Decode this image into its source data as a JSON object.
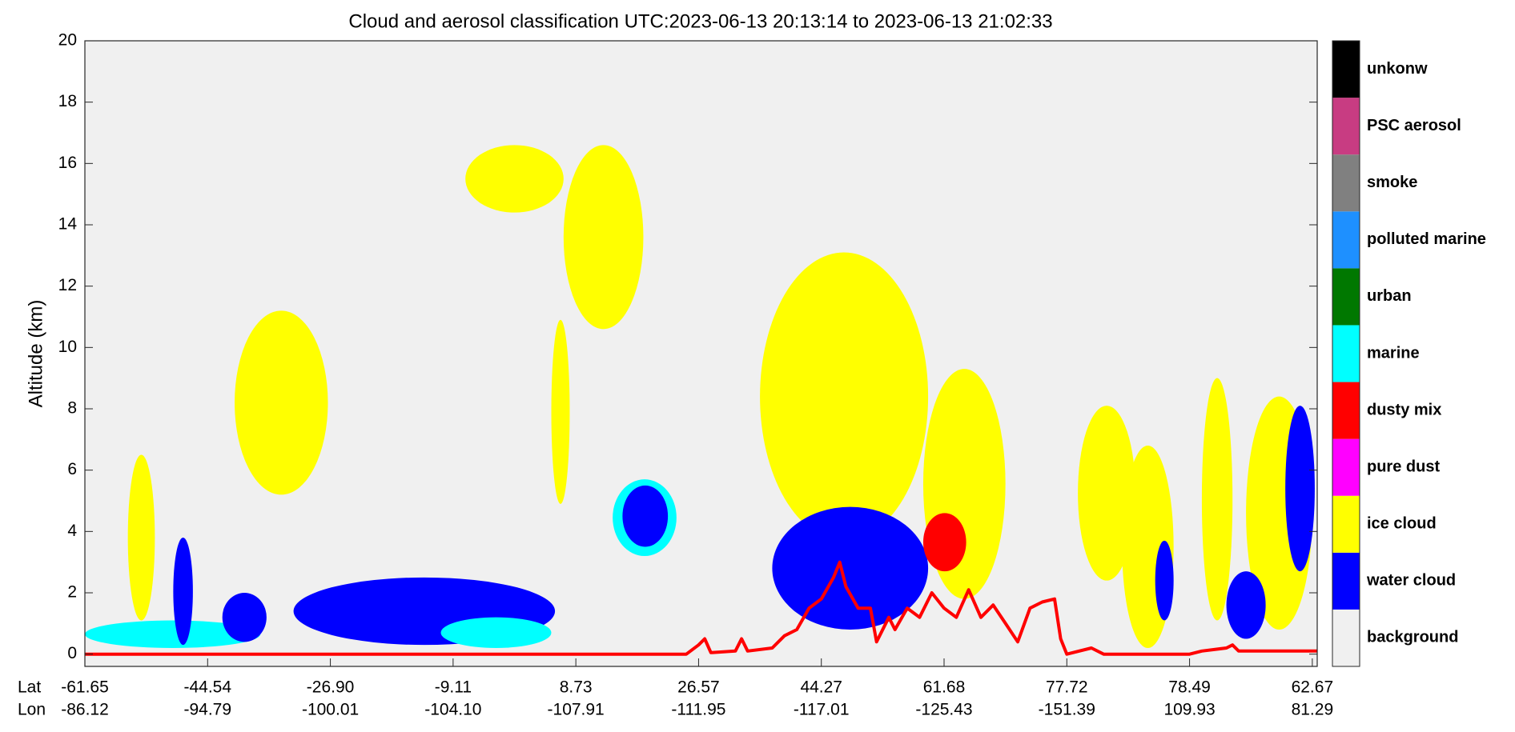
{
  "chart_data": {
    "type": "curtain",
    "title": "Cloud and aerosol classification UTC:2023-06-13 20:13:14 to 2023-06-13 21:02:33",
    "ylabel": "Altitude (km)",
    "ylim": [
      -0.4,
      20
    ],
    "yticks": [
      0,
      2,
      4,
      6,
      8,
      10,
      12,
      14,
      16,
      18,
      20
    ],
    "xlim": [
      0,
      10.04
    ],
    "x_row_labels": [
      "Lat",
      "Lon"
    ],
    "xticks": [
      {
        "value": 0,
        "lat": "-61.65",
        "lon": "-86.12"
      },
      {
        "value": 1,
        "lat": "-44.54",
        "lon": "-94.79"
      },
      {
        "value": 2,
        "lat": "-26.90",
        "lon": "-100.01"
      },
      {
        "value": 3,
        "lat": "-9.11",
        "lon": "-104.10"
      },
      {
        "value": 4,
        "lat": "8.73",
        "lon": "-107.91"
      },
      {
        "value": 5,
        "lat": "26.57",
        "lon": "-111.95"
      },
      {
        "value": 6,
        "lat": "44.27",
        "lon": "-117.01"
      },
      {
        "value": 7,
        "lat": "61.68",
        "lon": "-125.43"
      },
      {
        "value": 8,
        "lat": "77.72",
        "lon": "-151.39"
      },
      {
        "value": 9,
        "lat": "78.49",
        "lon": "109.93"
      },
      {
        "value": 10,
        "lat": "62.67",
        "lon": "81.29"
      }
    ],
    "classes": [
      {
        "name": "background",
        "color": "#f0f0f0"
      },
      {
        "name": "water cloud",
        "color": "#0000ff"
      },
      {
        "name": "ice cloud",
        "color": "#ffff00"
      },
      {
        "name": "pure dust",
        "color": "#ff00ff"
      },
      {
        "name": "dusty mix",
        "color": "#ff0000"
      },
      {
        "name": "marine",
        "color": "#00ffff"
      },
      {
        "name": "urban",
        "color": "#007800"
      },
      {
        "name": "polluted marine",
        "color": "#1e90ff"
      },
      {
        "name": "smoke",
        "color": "#808080"
      },
      {
        "name": "PSC aerosol",
        "color": "#c83c82"
      },
      {
        "name": "unkonw",
        "color": "#000000"
      }
    ],
    "regions": [
      {
        "class": 5,
        "x": [
          0,
          1.43
        ],
        "y": [
          0.2,
          1.1
        ]
      },
      {
        "class": 1,
        "x": [
          1.12,
          1.48
        ],
        "y": [
          0.4,
          2.0
        ]
      },
      {
        "class": 2,
        "x": [
          0.35,
          0.57
        ],
        "y": [
          1.1,
          6.5
        ]
      },
      {
        "class": 1,
        "x": [
          0.72,
          0.88
        ],
        "y": [
          0.3,
          3.8
        ]
      },
      {
        "class": 2,
        "x": [
          1.22,
          1.98
        ],
        "y": [
          5.2,
          11.2
        ]
      },
      {
        "class": 1,
        "x": [
          1.7,
          3.83
        ],
        "y": [
          0.3,
          2.5
        ]
      },
      {
        "class": 5,
        "x": [
          2.9,
          3.8
        ],
        "y": [
          0.2,
          1.2
        ]
      },
      {
        "class": 2,
        "x": [
          3.1,
          3.9
        ],
        "y": [
          14.4,
          16.6
        ]
      },
      {
        "class": 2,
        "x": [
          3.9,
          4.55
        ],
        "y": [
          10.6,
          16.6
        ]
      },
      {
        "class": 2,
        "x": [
          3.8,
          3.95
        ],
        "y": [
          4.9,
          10.9
        ]
      },
      {
        "class": 5,
        "x": [
          4.3,
          4.82
        ],
        "y": [
          3.2,
          5.7
        ]
      },
      {
        "class": 1,
        "x": [
          4.38,
          4.75
        ],
        "y": [
          3.5,
          5.5
        ]
      },
      {
        "class": 2,
        "x": [
          5.5,
          6.87
        ],
        "y": [
          3.7,
          13.1
        ]
      },
      {
        "class": 1,
        "x": [
          5.6,
          6.87
        ],
        "y": [
          0.8,
          4.8
        ]
      },
      {
        "class": 2,
        "x": [
          6.83,
          7.5
        ],
        "y": [
          1.8,
          9.3
        ]
      },
      {
        "class": 4,
        "x": [
          6.83,
          7.18
        ],
        "y": [
          2.7,
          4.6
        ]
      },
      {
        "class": 2,
        "x": [
          8.09,
          8.56
        ],
        "y": [
          2.4,
          8.1
        ]
      },
      {
        "class": 2,
        "x": [
          8.45,
          8.87
        ],
        "y": [
          0.2,
          6.8
        ]
      },
      {
        "class": 1,
        "x": [
          8.72,
          8.87
        ],
        "y": [
          1.1,
          3.7
        ]
      },
      {
        "class": 2,
        "x": [
          9.1,
          9.35
        ],
        "y": [
          1.1,
          9.0
        ]
      },
      {
        "class": 2,
        "x": [
          9.46,
          10.0
        ],
        "y": [
          0.8,
          8.4
        ]
      },
      {
        "class": 1,
        "x": [
          9.3,
          9.62
        ],
        "y": [
          0.5,
          2.7
        ]
      },
      {
        "class": 1,
        "x": [
          9.78,
          10.02
        ],
        "y": [
          2.7,
          8.1
        ]
      }
    ],
    "surface": {
      "color": "#ff0000",
      "x": [
        0,
        4.9,
        5.0,
        5.05,
        5.1,
        5.3,
        5.35,
        5.4,
        5.6,
        5.7,
        5.8,
        5.9,
        6.0,
        6.1,
        6.15,
        6.2,
        6.3,
        6.4,
        6.45,
        6.55,
        6.6,
        6.7,
        6.8,
        6.9,
        7.0,
        7.1,
        7.2,
        7.3,
        7.4,
        7.5,
        7.6,
        7.7,
        7.8,
        7.9,
        7.95,
        8.0,
        8.2,
        8.3,
        9.0,
        9.1,
        9.3,
        9.35,
        9.4,
        10.04
      ],
      "values": [
        0,
        0,
        0.3,
        0.5,
        0.05,
        0.1,
        0.5,
        0.1,
        0.2,
        0.6,
        0.8,
        1.5,
        1.8,
        2.5,
        3.0,
        2.2,
        1.5,
        1.5,
        0.4,
        1.2,
        0.8,
        1.5,
        1.2,
        2.0,
        1.5,
        1.2,
        2.1,
        1.2,
        1.6,
        1.0,
        0.4,
        1.5,
        1.7,
        1.8,
        0.5,
        0,
        0.2,
        0,
        0,
        0.1,
        0.2,
        0.3,
        0.1,
        0.1
      ]
    }
  }
}
